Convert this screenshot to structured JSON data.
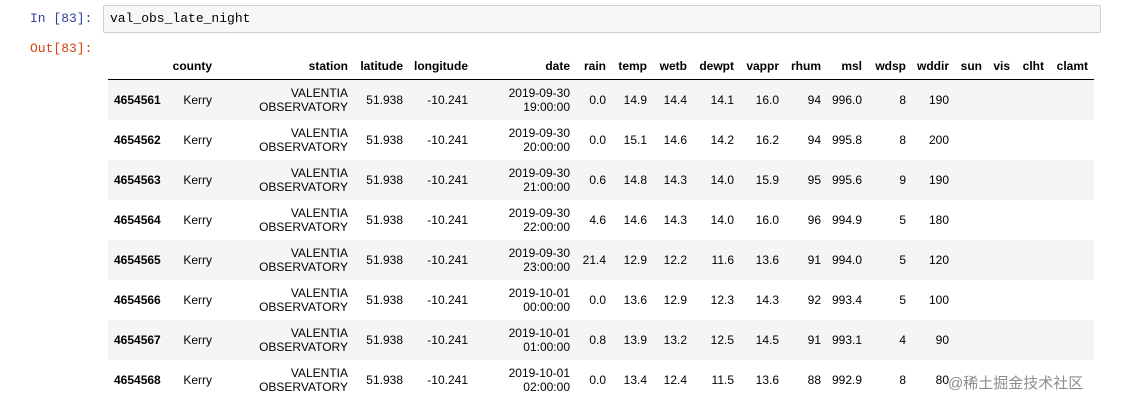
{
  "input": {
    "prompt": "In [83]:",
    "code": "val_obs_late_night"
  },
  "output": {
    "prompt": "Out[83]:"
  },
  "table": {
    "columns": [
      "county",
      "station",
      "latitude",
      "longitude",
      "date",
      "rain",
      "temp",
      "wetb",
      "dewpt",
      "vappr",
      "rhum",
      "msl",
      "wdsp",
      "wddir",
      "sun",
      "vis",
      "clht",
      "clamt"
    ],
    "rows": [
      [
        "4654561",
        "Kerry",
        "VALENTIA OBSERVATORY",
        "51.938",
        "-10.241",
        "2019-09-30 19:00:00",
        "0.0",
        "14.9",
        "14.4",
        "14.1",
        "16.0",
        "94",
        "996.0",
        "8",
        "190"
      ],
      [
        "4654562",
        "Kerry",
        "VALENTIA OBSERVATORY",
        "51.938",
        "-10.241",
        "2019-09-30 20:00:00",
        "0.0",
        "15.1",
        "14.6",
        "14.2",
        "16.2",
        "94",
        "995.8",
        "8",
        "200"
      ],
      [
        "4654563",
        "Kerry",
        "VALENTIA OBSERVATORY",
        "51.938",
        "-10.241",
        "2019-09-30 21:00:00",
        "0.6",
        "14.8",
        "14.3",
        "14.0",
        "15.9",
        "95",
        "995.6",
        "9",
        "190"
      ],
      [
        "4654564",
        "Kerry",
        "VALENTIA OBSERVATORY",
        "51.938",
        "-10.241",
        "2019-09-30 22:00:00",
        "4.6",
        "14.6",
        "14.3",
        "14.0",
        "16.0",
        "96",
        "994.9",
        "5",
        "180"
      ],
      [
        "4654565",
        "Kerry",
        "VALENTIA OBSERVATORY",
        "51.938",
        "-10.241",
        "2019-09-30 23:00:00",
        "21.4",
        "12.9",
        "12.2",
        "11.6",
        "13.6",
        "91",
        "994.0",
        "5",
        "120"
      ],
      [
        "4654566",
        "Kerry",
        "VALENTIA OBSERVATORY",
        "51.938",
        "-10.241",
        "2019-10-01 00:00:00",
        "0.0",
        "13.6",
        "12.9",
        "12.3",
        "14.3",
        "92",
        "993.4",
        "5",
        "100"
      ],
      [
        "4654567",
        "Kerry",
        "VALENTIA OBSERVATORY",
        "51.938",
        "-10.241",
        "2019-10-01 01:00:00",
        "0.8",
        "13.9",
        "13.2",
        "12.5",
        "14.5",
        "91",
        "993.1",
        "4",
        "90"
      ],
      [
        "4654568",
        "Kerry",
        "VALENTIA OBSERVATORY",
        "51.938",
        "-10.241",
        "2019-10-01 02:00:00",
        "0.0",
        "13.4",
        "12.4",
        "11.5",
        "13.6",
        "88",
        "992.9",
        "8",
        "80"
      ]
    ]
  },
  "watermark": "@稀土掘金技术社区"
}
